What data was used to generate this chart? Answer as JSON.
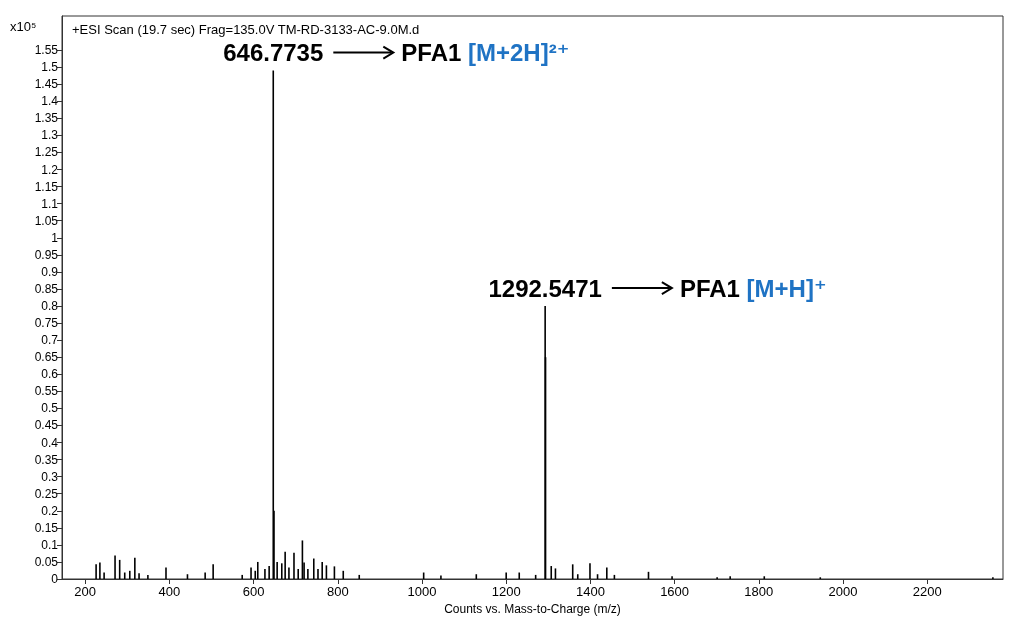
{
  "chart_data": {
    "type": "bar",
    "title": "+ESI Scan (19.7 sec) Frag=135.0V TM-RD-3133-AC-9.0M.d",
    "xlabel": "Counts vs. Mass-to-Charge (m/z)",
    "ylabel": "x10⁵",
    "x": [
      226,
      235,
      245,
      271,
      282,
      294,
      306,
      318,
      328,
      349,
      392,
      443,
      485,
      504,
      573,
      594,
      604,
      610,
      627,
      637,
      646.7735,
      648.5,
      656,
      667,
      675,
      684,
      696,
      706,
      716,
      720,
      729,
      743,
      753,
      763,
      773,
      792,
      813,
      851,
      1004,
      1045,
      1129,
      1200,
      1231,
      1270,
      1292.5471,
      1293.5,
      1307,
      1317,
      1358,
      1370,
      1399,
      1417,
      1439,
      1457,
      1538,
      1594,
      1701,
      1732,
      1813,
      1946,
      2356
    ],
    "values": [
      0.043,
      0.048,
      0.019,
      0.069,
      0.056,
      0.019,
      0.024,
      0.062,
      0.017,
      0.012,
      0.034,
      0.014,
      0.019,
      0.043,
      0.012,
      0.034,
      0.024,
      0.05,
      0.029,
      0.038,
      1.49,
      0.2,
      0.05,
      0.046,
      0.08,
      0.034,
      0.077,
      0.029,
      0.113,
      0.048,
      0.029,
      0.06,
      0.029,
      0.05,
      0.04,
      0.037,
      0.024,
      0.012,
      0.019,
      0.01,
      0.014,
      0.019,
      0.019,
      0.012,
      0.8,
      0.65,
      0.038,
      0.031,
      0.043,
      0.014,
      0.046,
      0.014,
      0.034,
      0.012,
      0.021,
      0.008,
      0.005,
      0.008,
      0.008,
      0.005,
      0.005
    ],
    "color": "#000000",
    "xlim": [
      145,
      2380
    ],
    "xticks": [
      200,
      400,
      600,
      800,
      1000,
      1200,
      1400,
      1600,
      1800,
      2000,
      2200
    ],
    "ylim": [
      0,
      1.65
    ],
    "yticks": [
      0,
      0.05,
      0.1,
      0.15,
      0.2,
      0.25,
      0.3,
      0.35,
      0.4,
      0.45,
      0.5,
      0.55,
      0.6,
      0.65,
      0.7,
      0.75,
      0.8,
      0.85,
      0.9,
      0.95,
      1,
      1.05,
      1.1,
      1.15,
      1.2,
      1.25,
      1.3,
      1.35,
      1.4,
      1.45,
      1.5,
      1.55
    ],
    "annotations": [
      {
        "text": "646.7735",
        "x": 646.7735,
        "y": 1.49
      },
      "PFA1 [M+2H]²⁺",
      {
        "text": "1292.5471",
        "x": 1292.5471,
        "y": 0.8
      },
      "PFA1 [M+H]⁺"
    ],
    "grid": false
  }
}
